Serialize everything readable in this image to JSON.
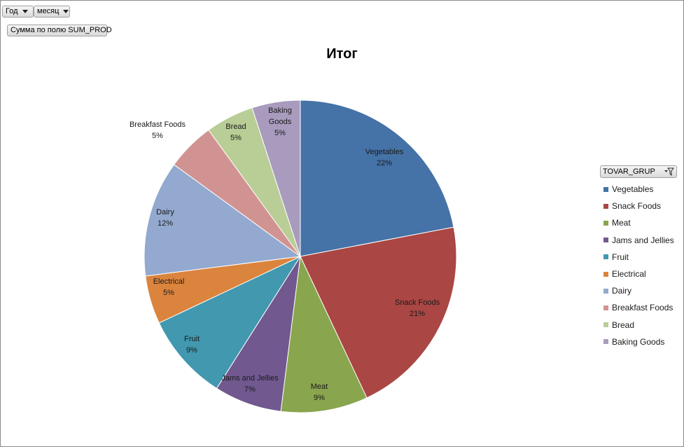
{
  "pivot": {
    "filter_year": "Год",
    "filter_month": "месяц",
    "values_field": "Сумма по полю SUM_PROD",
    "legend_field": "TOVAR_GRUP"
  },
  "chart_data": {
    "type": "pie",
    "title": "Итог",
    "legend": "right",
    "slices": [
      {
        "name": "Vegetables",
        "value": 22,
        "label": "22%",
        "color": "#4572A7"
      },
      {
        "name": "Snack Foods",
        "value": 21,
        "label": "21%",
        "color": "#AA4643"
      },
      {
        "name": "Meat",
        "value": 9,
        "label": "9%",
        "color": "#89A54E"
      },
      {
        "name": "Jams and Jellies",
        "value": 7,
        "label": "7%",
        "color": "#71588F"
      },
      {
        "name": "Fruit",
        "value": 9,
        "label": "9%",
        "color": "#4198AF"
      },
      {
        "name": "Electrical",
        "value": 5,
        "label": "5%",
        "color": "#DB843D"
      },
      {
        "name": "Dairy",
        "value": 12,
        "label": "12%",
        "color": "#93A9CF"
      },
      {
        "name": "Breakfast Foods",
        "value": 5,
        "label": "5%",
        "color": "#D19392"
      },
      {
        "name": "Bread",
        "value": 5,
        "label": "5%",
        "color": "#B9CD96"
      },
      {
        "name": "Baking Goods",
        "value": 5,
        "label": "5%",
        "color": "#A99BBD"
      }
    ]
  }
}
